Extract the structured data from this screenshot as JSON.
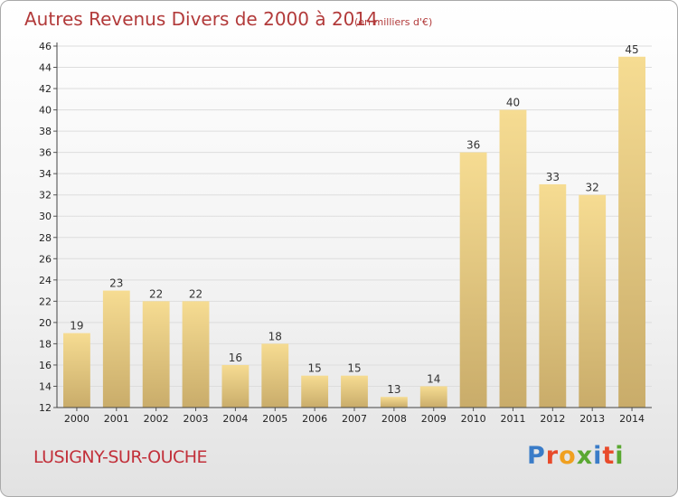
{
  "header": {
    "title": "Autres Revenus Divers de 2000 à 2014",
    "subtitle": "(en milliers d'€)"
  },
  "footer": {
    "town": "LUSIGNY-SUR-OUCHE",
    "logo_text": "Proxiti",
    "logo_colors": [
      "#3a7cc8",
      "#e84a2a",
      "#f0a020",
      "#5aa832",
      "#3a7cc8",
      "#e84a2a",
      "#5aa832"
    ]
  },
  "chart_data": {
    "type": "bar",
    "title": "Autres Revenus Divers de 2000 à 2014",
    "subtitle": "(en milliers d'€)",
    "categories": [
      "2000",
      "2001",
      "2002",
      "2003",
      "2004",
      "2005",
      "2006",
      "2007",
      "2008",
      "2009",
      "2010",
      "2011",
      "2012",
      "2013",
      "2014"
    ],
    "values": [
      19,
      23,
      22,
      22,
      16,
      18,
      15,
      15,
      13,
      14,
      36,
      40,
      33,
      32,
      45
    ],
    "ylim": [
      12,
      46
    ],
    "yticks": [
      12,
      14,
      16,
      18,
      20,
      22,
      24,
      26,
      28,
      30,
      32,
      34,
      36,
      38,
      40,
      42,
      44,
      46
    ],
    "grid": true,
    "bar_color_top": "#f6dc92",
    "bar_color_bottom": "#c9ac6a"
  }
}
